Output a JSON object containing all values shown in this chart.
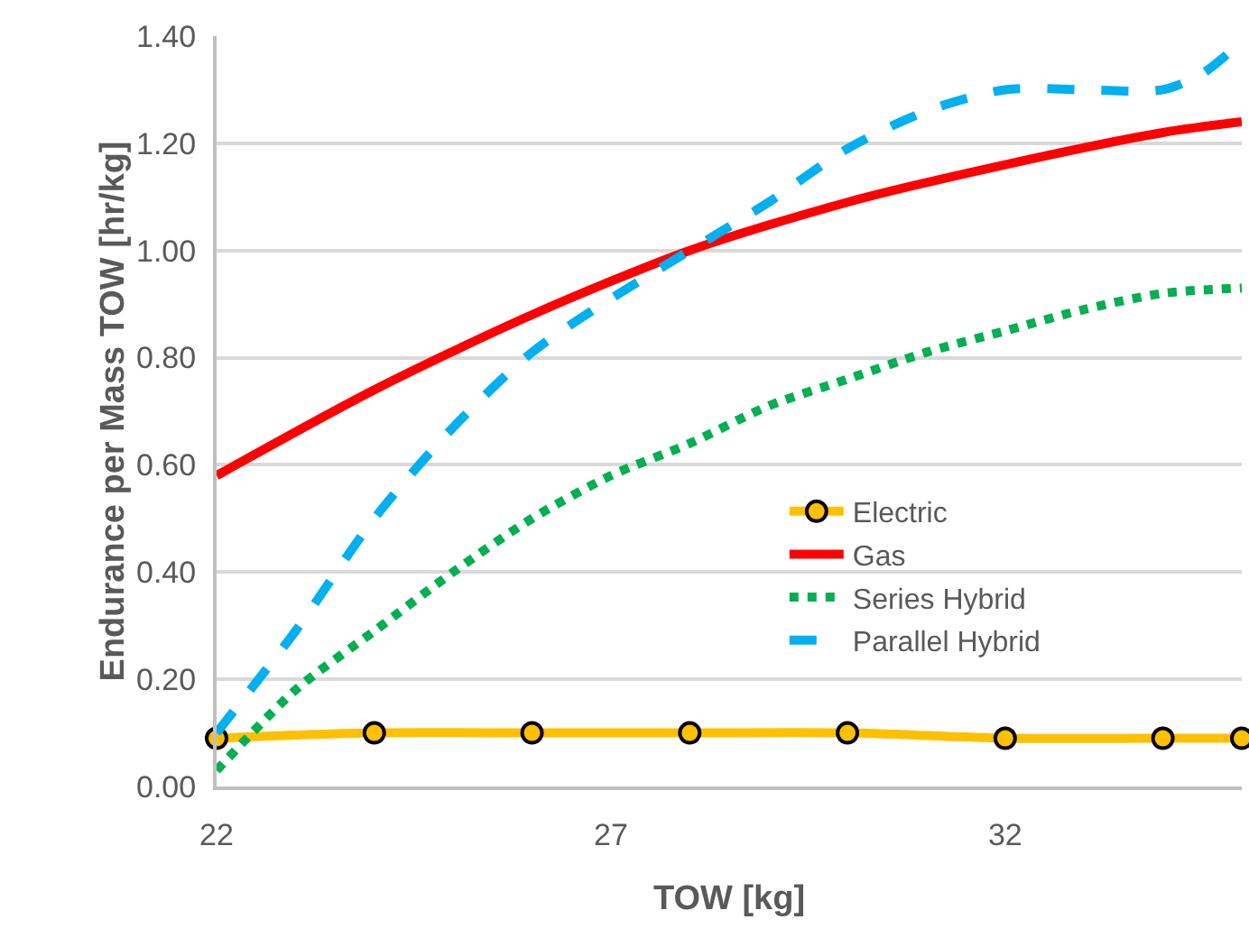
{
  "chart_data": {
    "type": "line",
    "xlabel": "TOW [kg]",
    "ylabel": "Endurance per Mass TOW [hr/kg]",
    "xlim": [
      22,
      35
    ],
    "xticks": [
      22,
      27,
      32
    ],
    "ylim": [
      0,
      1.4
    ],
    "yticks": [
      {
        "value": 0,
        "label": "0.00"
      },
      {
        "value": 0.2,
        "label": "0.20"
      },
      {
        "value": 0.4,
        "label": "0.40"
      },
      {
        "value": 0.6,
        "label": "0.60"
      },
      {
        "value": 0.8,
        "label": "0.80"
      },
      {
        "value": 1.0,
        "label": "1.00"
      },
      {
        "value": 1.2,
        "label": "1.20"
      },
      {
        "value": 1.4,
        "label": "1.40"
      }
    ],
    "grid": "y",
    "legend": "right",
    "series": [
      {
        "name": "Electric",
        "color": "#ffc000",
        "marker": "circle",
        "line_style": "solid",
        "x": [
          22,
          24,
          26,
          28,
          30,
          32,
          34,
          35
        ],
        "values": [
          0.09,
          0.1,
          0.1,
          0.1,
          0.1,
          0.09,
          0.09,
          0.09
        ]
      },
      {
        "name": "Gas",
        "color": "#ff0000",
        "marker": "none",
        "line_style": "solid",
        "x": [
          22,
          24,
          26,
          28,
          30,
          32,
          34,
          35
        ],
        "values": [
          0.58,
          0.74,
          0.88,
          1.0,
          1.09,
          1.16,
          1.22,
          1.24
        ]
      },
      {
        "name": "Series Hybrid",
        "color": "#00b050",
        "marker": "none",
        "line_style": "dotted",
        "x": [
          22,
          23,
          24,
          25,
          26,
          27,
          28,
          29,
          30,
          31,
          32,
          33,
          34,
          35
        ],
        "values": [
          0.03,
          0.18,
          0.29,
          0.4,
          0.5,
          0.58,
          0.64,
          0.71,
          0.76,
          0.81,
          0.85,
          0.89,
          0.92,
          0.93
        ]
      },
      {
        "name": "Parallel Hybrid",
        "color": "#00b0f0",
        "marker": "none",
        "line_style": "dashed",
        "x": [
          22,
          23,
          24,
          25,
          26,
          27,
          28,
          29,
          30,
          31,
          32,
          33,
          34,
          34.5,
          35
        ],
        "values": [
          0.1,
          0.29,
          0.5,
          0.67,
          0.81,
          0.91,
          1.0,
          1.09,
          1.19,
          1.26,
          1.3,
          1.3,
          1.3,
          1.33,
          1.39
        ]
      }
    ]
  }
}
